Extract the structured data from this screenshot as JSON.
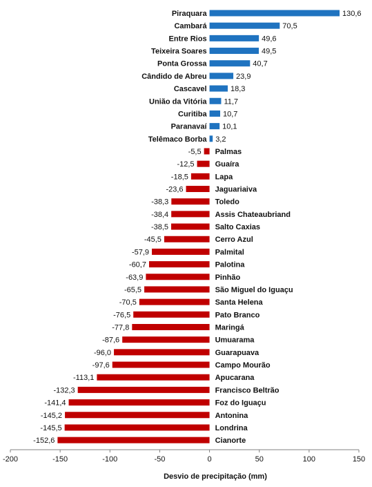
{
  "chart_data": {
    "type": "bar",
    "orientation": "horizontal",
    "title": "",
    "xlabel": "Desvio de precipitação (mm)",
    "ylabel": "",
    "xlim": [
      -200,
      150
    ],
    "xticks": [
      "-200",
      "-150",
      "-100",
      "-50",
      "0",
      "50",
      "100",
      "150"
    ],
    "grid": false,
    "legend": "none",
    "colors": {
      "positive": "#1f73c0",
      "negative": "#c00000",
      "axis": "#808080",
      "text": "#111111"
    },
    "categories": [
      "Piraquara",
      "Cambará",
      "Entre Rios",
      "Teixeira Soares",
      "Ponta Grossa",
      "Cândido de Abreu",
      "Cascavel",
      "União da Vitória",
      "Curitiba",
      "Paranavaí",
      "Telêmaco Borba",
      "Palmas",
      "Guaíra",
      "Lapa",
      "Jaguariaiva",
      "Toledo",
      "Assis Chateaubriand",
      "Salto Caxias",
      "Cerro Azul",
      "Palmital",
      "Palotina",
      "Pinhão",
      "São Miguel do Iguaçu",
      "Santa Helena",
      "Pato Branco",
      "Maringá",
      "Umuarama",
      "Guarapuava",
      "Campo Mourão",
      "Apucarana",
      "Francisco Beltrão",
      "Foz do Iguaçu",
      "Antonina",
      "Londrina",
      "Cianorte"
    ],
    "values": [
      130.6,
      70.5,
      49.6,
      49.5,
      40.7,
      23.9,
      18.3,
      11.7,
      10.7,
      10.1,
      3.2,
      -5.5,
      -12.5,
      -18.5,
      -23.6,
      -38.3,
      -38.4,
      -38.5,
      -45.5,
      -57.9,
      -60.7,
      -63.9,
      -65.5,
      -70.5,
      -76.5,
      -77.8,
      -87.6,
      -96.0,
      -97.6,
      -113.1,
      -132.3,
      -141.4,
      -145.2,
      -145.5,
      -152.6
    ],
    "value_labels": [
      "130,6",
      "70,5",
      "49,6",
      "49,5",
      "40,7",
      "23,9",
      "18,3",
      "11,7",
      "10,7",
      "10,1",
      "3,2",
      "-5,5",
      "-12,5",
      "-18,5",
      "-23,6",
      "-38,3",
      "-38,4",
      "-38,5",
      "-45,5",
      "-57,9",
      "-60,7",
      "-63,9",
      "-65,5",
      "-70,5",
      "-76,5",
      "-77,8",
      "-87,6",
      "-96,0",
      "-97,6",
      "-113,1",
      "-132,3",
      "-141,4",
      "-145,2",
      "-145,5",
      "-152,6"
    ]
  }
}
